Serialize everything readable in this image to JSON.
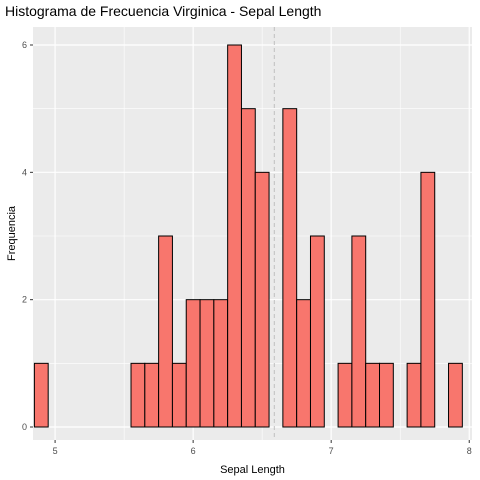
{
  "chart_data": {
    "type": "bar",
    "title": "Histograma de Frecuencia Virginica - Sepal Length",
    "xlabel": "Sepal Length",
    "ylabel": "Frequencia",
    "xlim": [
      4.84,
      8.02
    ],
    "ylim": [
      0,
      6
    ],
    "x_ticks": [
      5,
      6,
      7,
      8
    ],
    "y_ticks": [
      0,
      2,
      4,
      6
    ],
    "bin_width": 0.1,
    "bin_centers": [
      4.9,
      5.0,
      5.1,
      5.2,
      5.3,
      5.4,
      5.5,
      5.6,
      5.7,
      5.8,
      5.9,
      6.0,
      6.1,
      6.2,
      6.3,
      6.4,
      6.5,
      6.6,
      6.7,
      6.8,
      6.9,
      7.0,
      7.1,
      7.2,
      7.3,
      7.4,
      7.5,
      7.6,
      7.7,
      7.8,
      7.9
    ],
    "values": [
      1,
      0,
      0,
      0,
      0,
      0,
      0,
      1,
      1,
      3,
      1,
      2,
      2,
      2,
      6,
      5,
      4,
      0,
      5,
      2,
      3,
      0,
      1,
      3,
      1,
      1,
      0,
      1,
      4,
      0,
      1
    ],
    "mean_line": 6.588,
    "grid": true,
    "colors": {
      "bar_fill": "#F8766D",
      "bar_stroke": "#000000",
      "panel": "#EBEBEB",
      "grid": "#FFFFFF",
      "mean_line": "#BFBFBF",
      "tick_text": "#4D4D4D"
    }
  }
}
